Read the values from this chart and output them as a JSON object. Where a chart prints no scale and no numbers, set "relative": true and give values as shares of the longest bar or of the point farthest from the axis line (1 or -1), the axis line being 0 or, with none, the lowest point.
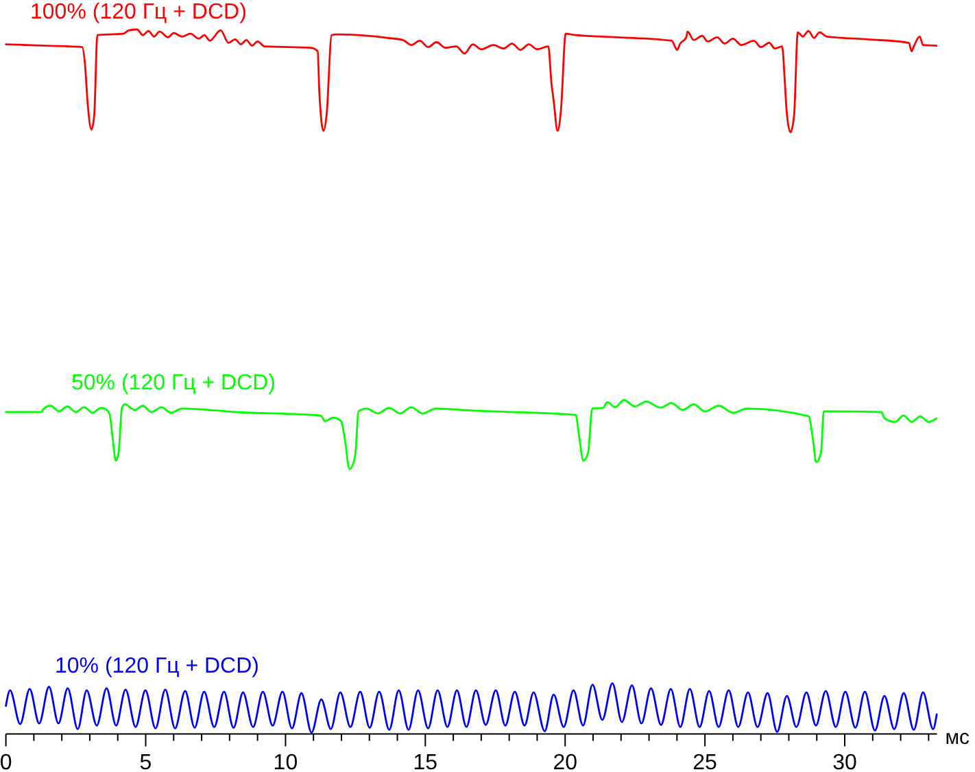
{
  "chart_data": {
    "type": "line",
    "xlabel": "мс",
    "relative": true,
    "xlim": [
      0,
      33.3
    ],
    "xticks": [
      0,
      {
        "value": 1,
        "label": null
      },
      {
        "value": 2,
        "label": null
      },
      {
        "value": 3,
        "label": null
      },
      {
        "value": 4,
        "label": null
      },
      5,
      {
        "value": 6,
        "label": null
      },
      {
        "value": 7,
        "label": null
      },
      {
        "value": 8,
        "label": null
      },
      {
        "value": 9,
        "label": null
      },
      10,
      {
        "value": 11,
        "label": null
      },
      {
        "value": 12,
        "label": null
      },
      {
        "value": 13,
        "label": null
      },
      {
        "value": 14,
        "label": null
      },
      15,
      {
        "value": 16,
        "label": null
      },
      {
        "value": 17,
        "label": null
      },
      {
        "value": 18,
        "label": null
      },
      {
        "value": 19,
        "label": null
      },
      20,
      {
        "value": 21,
        "label": null
      },
      {
        "value": 22,
        "label": null
      },
      {
        "value": 23,
        "label": null
      },
      {
        "value": 24,
        "label": null
      },
      25,
      {
        "value": 26,
        "label": null
      },
      {
        "value": 27,
        "label": null
      },
      {
        "value": 28,
        "label": null
      },
      {
        "value": 29,
        "label": null
      },
      30,
      {
        "value": 31,
        "label": null
      },
      {
        "value": 32,
        "label": null
      },
      {
        "value": 33,
        "label": null
      }
    ],
    "series": [
      {
        "name": "100% (120 Гц + DCD)",
        "color": "#ff0000",
        "x": [
          0,
          1.4,
          2.73,
          2.83,
          2.93,
          3.06,
          3.16,
          3.27,
          4.2,
          4.4,
          4.69,
          4.9,
          5.1,
          5.3,
          5.5,
          5.8,
          6.0,
          6.3,
          6.6,
          6.9,
          7.1,
          7.29,
          7.68,
          7.96,
          8.2,
          8.4,
          8.6,
          8.8,
          9.0,
          9.25,
          10.9,
          11.15,
          11.21,
          11.36,
          11.47,
          11.65,
          11.88,
          13.66,
          14.2,
          14.5,
          14.8,
          15.1,
          15.4,
          15.72,
          16.11,
          16.4,
          16.7,
          17.0,
          17.44,
          17.8,
          18.1,
          18.4,
          18.7,
          19.0,
          19.4,
          19.51,
          19.59,
          19.73,
          19.85,
          20.02,
          20.38,
          21.85,
          23.81,
          24.01,
          24.1,
          24.33,
          24.38,
          24.6,
          24.9,
          25.1,
          25.44,
          25.7,
          26.0,
          26.3,
          26.75,
          27.0,
          27.3,
          27.5,
          27.76,
          27.86,
          27.92,
          28.06,
          28.19,
          28.32,
          28.5,
          28.7,
          28.9,
          29.1,
          29.36,
          30.83,
          32.3,
          32.39,
          32.47,
          32.68,
          32.8,
          33.28
        ],
        "values": [
          0.979,
          0.977,
          0.975,
          0.95,
          0.892,
          0.858,
          0.879,
          0.992,
          0.994,
          0.999,
          1.0,
          0.992,
          0.998,
          0.99,
          0.997,
          0.989,
          0.995,
          0.99,
          0.994,
          0.987,
          0.992,
          0.984,
          0.999,
          0.981,
          0.986,
          0.979,
          0.985,
          0.977,
          0.983,
          0.976,
          0.974,
          0.969,
          0.911,
          0.856,
          0.879,
          0.992,
          0.993,
          0.988,
          0.985,
          0.978,
          0.984,
          0.975,
          0.982,
          0.974,
          0.976,
          0.966,
          0.979,
          0.972,
          0.978,
          0.973,
          0.98,
          0.971,
          0.979,
          0.972,
          0.976,
          0.924,
          0.899,
          0.856,
          0.885,
          0.994,
          0.992,
          0.989,
          0.984,
          0.971,
          0.979,
          0.989,
          0.997,
          0.985,
          0.991,
          0.983,
          0.989,
          0.98,
          0.987,
          0.978,
          0.984,
          0.975,
          0.981,
          0.973,
          0.976,
          0.924,
          0.885,
          0.854,
          0.879,
          0.996,
          0.99,
          0.998,
          0.988,
          0.996,
          0.99,
          0.986,
          0.981,
          0.969,
          0.976,
          0.99,
          0.978,
          0.977
        ]
      },
      {
        "name": "50% (120 Гц + DCD)",
        "color": "#00ff00",
        "x": [
          0,
          1.26,
          1.36,
          1.6,
          1.9,
          2.2,
          2.5,
          2.8,
          3.1,
          3.4,
          3.61,
          3.71,
          3.81,
          3.93,
          4.03,
          4.15,
          4.25,
          4.6,
          4.9,
          5.2,
          5.57,
          5.9,
          6.3,
          8.22,
          11.26,
          11.41,
          11.7,
          11.99,
          12.12,
          12.29,
          12.49,
          12.61,
          12.9,
          13.3,
          13.7,
          14.1,
          14.5,
          14.9,
          15.38,
          16.7,
          20.38,
          20.5,
          20.65,
          20.82,
          20.97,
          21.36,
          21.5,
          21.8,
          22.1,
          22.5,
          22.9,
          23.42,
          23.8,
          24.2,
          24.6,
          25.0,
          25.5,
          26.0,
          26.5,
          28.71,
          28.86,
          28.98,
          29.15,
          29.25,
          31.31,
          31.43,
          31.8,
          32.1,
          32.4,
          32.7,
          33.0,
          33.28
        ],
        "values": [
          0.457,
          0.457,
          0.462,
          0.466,
          0.458,
          0.465,
          0.457,
          0.464,
          0.456,
          0.463,
          0.46,
          0.454,
          0.423,
          0.388,
          0.399,
          0.463,
          0.468,
          0.46,
          0.466,
          0.457,
          0.464,
          0.456,
          0.462,
          0.457,
          0.452,
          0.444,
          0.449,
          0.444,
          0.419,
          0.376,
          0.395,
          0.458,
          0.462,
          0.455,
          0.463,
          0.455,
          0.464,
          0.455,
          0.462,
          0.459,
          0.453,
          0.423,
          0.388,
          0.399,
          0.462,
          0.463,
          0.471,
          0.464,
          0.474,
          0.465,
          0.472,
          0.463,
          0.47,
          0.46,
          0.468,
          0.458,
          0.466,
          0.456,
          0.462,
          0.451,
          0.419,
          0.386,
          0.399,
          0.458,
          0.457,
          0.448,
          0.443,
          0.452,
          0.443,
          0.451,
          0.443,
          0.448
        ]
      },
      {
        "name": "10% (120 Гц + DCD)",
        "color": "#0000ff",
        "x": [
          0,
          0.15,
          0.51,
          0.85,
          1.19,
          1.54,
          1.88,
          2.21,
          2.57,
          2.89,
          3.25,
          3.6,
          3.94,
          4.28,
          4.64,
          4.99,
          5.35,
          5.7,
          6.05,
          6.41,
          6.75,
          7.09,
          7.45,
          7.8,
          8.14,
          8.48,
          8.84,
          9.19,
          9.54,
          9.89,
          10.23,
          10.57,
          10.93,
          11.28,
          11.62,
          11.96,
          12.32,
          12.67,
          13.01,
          13.35,
          13.71,
          14.05,
          14.4,
          14.74,
          15.1,
          15.44,
          15.79,
          16.13,
          16.47,
          16.81,
          17.16,
          17.52,
          17.86,
          18.2,
          18.55,
          18.87,
          19.27,
          19.59,
          19.95,
          20.3,
          20.64,
          20.98,
          21.33,
          21.69,
          22.03,
          22.39,
          22.73,
          23.07,
          23.43,
          23.78,
          24.12,
          24.46,
          24.81,
          25.15,
          25.49,
          25.85,
          26.19,
          26.54,
          26.88,
          27.24,
          27.58,
          27.93,
          28.27,
          28.63,
          28.97,
          29.32,
          29.68,
          30.02,
          30.38,
          30.72,
          31.08,
          31.42,
          31.77,
          32.11,
          32.47,
          32.8,
          33.16,
          33.29
        ],
        "values": [
          0.04,
          0.062,
          0.014,
          0.064,
          0.015,
          0.067,
          0.015,
          0.065,
          0.007,
          0.062,
          0.012,
          0.065,
          0.012,
          0.063,
          0.01,
          0.062,
          0.008,
          0.063,
          0.008,
          0.061,
          0.009,
          0.06,
          0.01,
          0.06,
          0.009,
          0.059,
          0.01,
          0.06,
          0.012,
          0.06,
          0.008,
          0.058,
          0.002,
          0.049,
          0.007,
          0.059,
          0.01,
          0.06,
          0.009,
          0.06,
          0.006,
          0.062,
          0.006,
          0.062,
          0.008,
          0.062,
          0.01,
          0.062,
          0.01,
          0.062,
          0.013,
          0.062,
          0.012,
          0.06,
          0.012,
          0.059,
          0.004,
          0.056,
          0.01,
          0.062,
          0.012,
          0.07,
          0.02,
          0.072,
          0.017,
          0.069,
          0.015,
          0.065,
          0.013,
          0.064,
          0.01,
          0.064,
          0.01,
          0.061,
          0.01,
          0.062,
          0.01,
          0.059,
          0.01,
          0.058,
          0.003,
          0.054,
          0.01,
          0.059,
          0.012,
          0.061,
          0.01,
          0.06,
          0.009,
          0.06,
          0.005,
          0.054,
          0.007,
          0.058,
          0.006,
          0.059,
          0.007,
          0.028
        ]
      }
    ]
  }
}
